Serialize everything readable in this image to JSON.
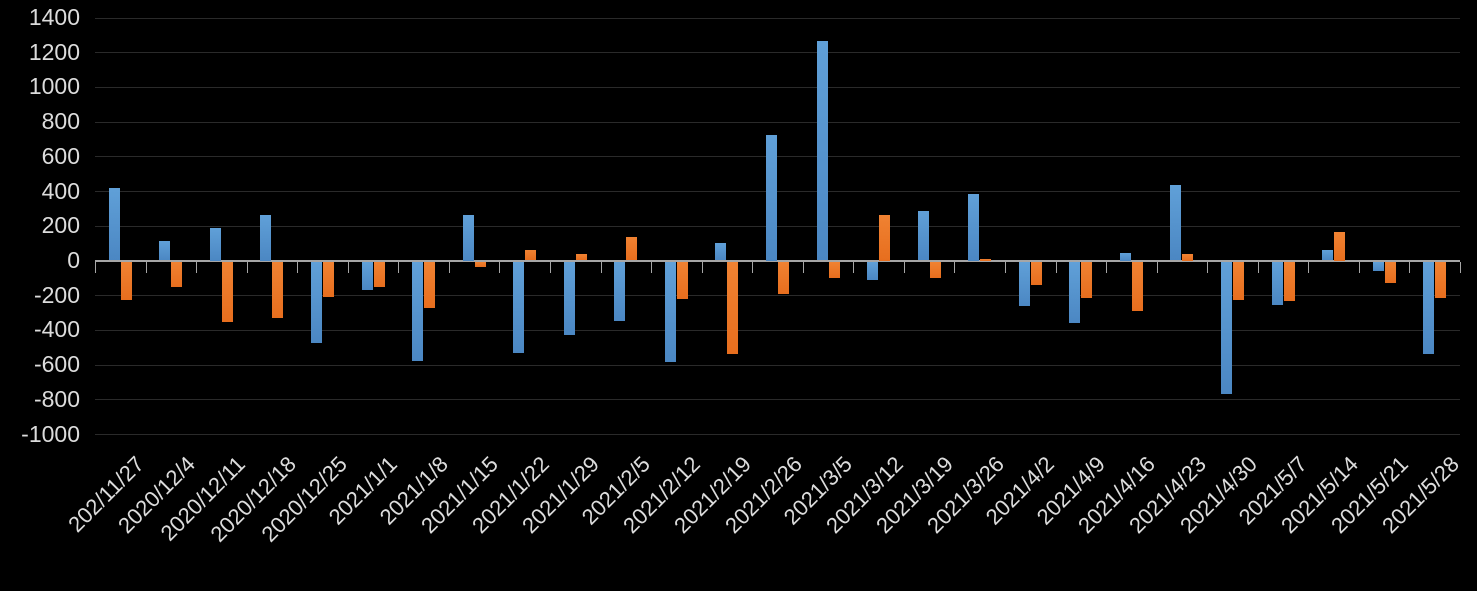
{
  "chart_data": {
    "type": "bar",
    "title": "",
    "categories": [
      "202/11/27",
      "2020/12/4",
      "2020/12/11",
      "2020/12/18",
      "2020/12/25",
      "2021/1/1",
      "2021/1/8",
      "2021/1/15",
      "2021/1/22",
      "2021/1/29",
      "2021/2/5",
      "2021/2/12",
      "2021/2/19",
      "2021/2/26",
      "2021/3/5",
      "2021/3/12",
      "2021/3/19",
      "2021/3/26",
      "2021/4/2",
      "2021/4/9",
      "2021/4/16",
      "2021/4/23",
      "2021/4/30",
      "2021/5/7",
      "2021/5/14",
      "2021/5/21",
      "2021/5/28"
    ],
    "series": [
      {
        "name": "blue",
        "color": "#5B9BD5",
        "values": [
          415,
          110,
          190,
          265,
          -465,
          -160,
          -570,
          265,
          -525,
          -420,
          -340,
          -575,
          100,
          725,
          1265,
          -105,
          285,
          385,
          -255,
          -350,
          45,
          435,
          -760,
          -250,
          60,
          -50,
          -530
        ]
      },
      {
        "name": "orange",
        "color": "#ED7D31",
        "values": [
          -220,
          -145,
          -345,
          -320,
          -200,
          -145,
          -265,
          -30,
          60,
          35,
          135,
          -215,
          -530,
          -185,
          -90,
          265,
          -95,
          10,
          -130,
          -210,
          -280,
          40,
          -220,
          -225,
          165,
          -120,
          -205
        ]
      }
    ],
    "xlabel": "",
    "ylabel": "",
    "ylim": [
      -1000,
      1400
    ],
    "ytick_interval": 200,
    "yticks": [
      "1400",
      "1200",
      "1000",
      "800",
      "600",
      "400",
      "200",
      "0",
      "-200",
      "-400",
      "-600",
      "-800",
      "-1000"
    ],
    "grid": "horizontal",
    "legend": "none",
    "x_label_rotation_deg": -45,
    "background_color": "#000000",
    "gridline_color": "#2a2a2a",
    "axis_line_color": "#a6a6a6",
    "label_color": "#dcdcdc"
  }
}
